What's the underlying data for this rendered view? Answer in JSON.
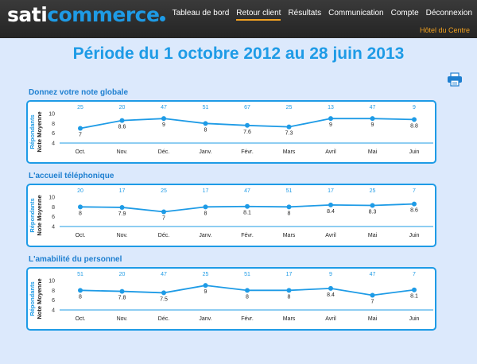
{
  "header": {
    "logo_part1": "sati",
    "logo_part2": "commerce",
    "nav": [
      {
        "label": "Tableau de bord",
        "active": false
      },
      {
        "label": "Retour client",
        "active": true
      },
      {
        "label": "Résultats",
        "active": false
      },
      {
        "label": "Communication",
        "active": false
      },
      {
        "label": "Compte",
        "active": false
      },
      {
        "label": "Déconnexion",
        "active": false
      }
    ],
    "hotel": "Hôtel du Centre"
  },
  "period_title": "Période du 1 octobre 2012 au 28 juin 2013",
  "print_icon": "printer-icon",
  "colors": {
    "accent": "#1e9be6",
    "highlight": "#f0a020"
  },
  "chart_data": [
    {
      "type": "line",
      "title": "Donnez votre note globale",
      "categories": [
        "Oct.",
        "Nov.",
        "Déc.",
        "Janv.",
        "Févr.",
        "Mars",
        "Avril",
        "Mai",
        "Juin"
      ],
      "respondents": [
        25,
        20,
        47,
        51,
        67,
        25,
        13,
        47,
        9
      ],
      "values": [
        7,
        8.6,
        9,
        8,
        7.6,
        7.3,
        9,
        9,
        8.8
      ],
      "value_labels": [
        "7",
        "8.6",
        "9",
        "8",
        "7.6",
        "7.3",
        "9",
        "9",
        "8.8"
      ],
      "ylabel": "Note Moyenne",
      "ylabel2": "Répondants",
      "yticks": [
        4,
        6,
        8,
        10
      ],
      "ylim": [
        4,
        10
      ]
    },
    {
      "type": "line",
      "title": "L'accueil téléphonique",
      "categories": [
        "Oct.",
        "Nov.",
        "Déc.",
        "Janv.",
        "Févr.",
        "Mars",
        "Avril",
        "Mai",
        "Juin"
      ],
      "respondents": [
        20,
        17,
        25,
        17,
        47,
        51,
        17,
        25,
        7
      ],
      "values": [
        8,
        7.9,
        7,
        8,
        8.1,
        8,
        8.4,
        8.3,
        8.6
      ],
      "value_labels": [
        "8",
        "7.9",
        "7",
        "8",
        "8.1",
        "8",
        "8.4",
        "8.3",
        "8.6"
      ],
      "ylabel": "Note Moyenne",
      "ylabel2": "Répondants",
      "yticks": [
        4,
        6,
        8,
        10
      ],
      "ylim": [
        4,
        10
      ]
    },
    {
      "type": "line",
      "title": "L'amabilité du personnel",
      "categories": [
        "Oct.",
        "Nov.",
        "Déc.",
        "Janv.",
        "Févr.",
        "Mars",
        "Avril",
        "Mai",
        "Juin"
      ],
      "respondents": [
        51,
        20,
        47,
        25,
        51,
        17,
        9,
        47,
        7
      ],
      "values": [
        8,
        7.8,
        7.5,
        9,
        8,
        8,
        8.4,
        7,
        8.1
      ],
      "value_labels": [
        "8",
        "7.8",
        "7.5",
        "9",
        "8",
        "8",
        "8.4",
        "7",
        "8.1"
      ],
      "ylabel": "Note Moyenne",
      "ylabel2": "Répondants",
      "yticks": [
        4,
        6,
        8,
        10
      ],
      "ylim": [
        4,
        10
      ]
    }
  ]
}
